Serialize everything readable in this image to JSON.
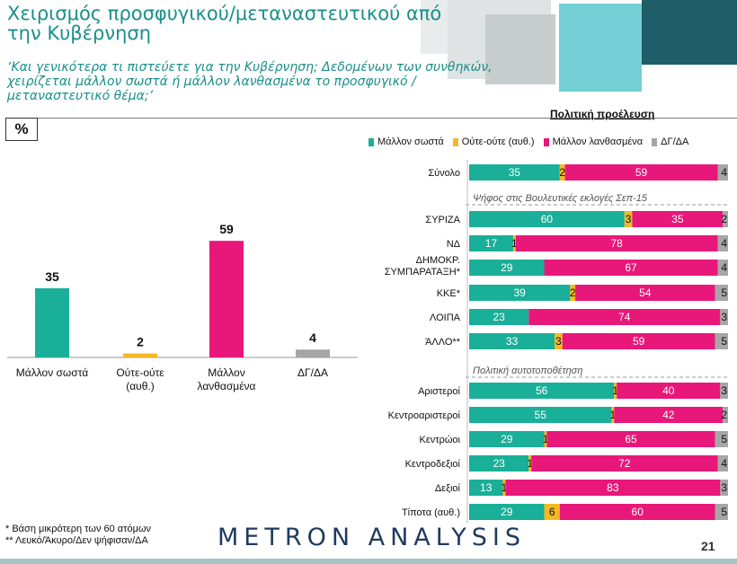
{
  "title": "Χειρισμός προσφυγικού/μεταναστευτικού από την Κυβέρνηση",
  "subtitle": "‘Και γενικότερα τι πιστεύετε για την Κυβέρνηση; Δεδομένων των συνθηκών, χειρίζεται μάλλον σωστά ή μάλλον λανθασμένα το προσφυγικό /μεταναστευτικό θέμα;’",
  "percent_label": "%",
  "origin_label": "Πολιτική προέλευση",
  "legend": [
    {
      "label": "Μάλλον σωστά",
      "color": "#1aaf98"
    },
    {
      "label": "Ούτε-ούτε (αυθ.)",
      "color": "#f5b923"
    },
    {
      "label": "Μάλλον λανθασμένα",
      "color": "#e8177a"
    },
    {
      "label": "ΔΓ/ΔΑ",
      "color": "#a6a6a6"
    }
  ],
  "chart_data": [
    {
      "type": "bar",
      "categories": [
        "Μάλλον σωστά",
        "Ούτε-ούτε (αυθ.)",
        "Μάλλον λανθασμένα",
        "ΔΓ/ΔΑ"
      ],
      "values": [
        35,
        2,
        59,
        4
      ],
      "colors": [
        "#1aaf98",
        "#f5b923",
        "#e8177a",
        "#a6a6a6"
      ]
    },
    {
      "type": "bar",
      "orientation": "horizontal",
      "stacked": true,
      "series_names": [
        "Μάλλον σωστά",
        "Ούτε-ούτε (αυθ.)",
        "Μάλλον λανθασμένα",
        "ΔΓ/ΔΑ"
      ],
      "section_labels": [
        "Ψήφος στις Βουλευτικές εκλογές Σεπ-15",
        "Πολιτική αυτοτοποθέτηση"
      ],
      "rows": [
        {
          "label": "Σύνολο",
          "values": [
            35,
            2,
            59,
            4
          ]
        },
        {
          "label": "ΣΥΡΙΖΑ",
          "values": [
            60,
            3,
            35,
            2
          ]
        },
        {
          "label": "ΝΔ",
          "values": [
            17,
            1,
            78,
            4
          ]
        },
        {
          "label": "ΔΗΜΟΚΡ. ΣΥΜΠΑΡΑΤΑΞΗ*",
          "values": [
            29,
            0,
            67,
            4
          ]
        },
        {
          "label": "ΚΚΕ*",
          "values": [
            39,
            2,
            54,
            5
          ]
        },
        {
          "label": "ΛΟΙΠΑ",
          "values": [
            23,
            0,
            74,
            3
          ]
        },
        {
          "label": "ΆΛΛΟ**",
          "values": [
            33,
            3,
            59,
            5
          ]
        },
        {
          "label": "Αριστεροί",
          "values": [
            56,
            1,
            40,
            3
          ]
        },
        {
          "label": "Κεντροαριστεροί",
          "values": [
            55,
            1,
            42,
            2
          ]
        },
        {
          "label": "Κεντρώοι",
          "values": [
            29,
            1,
            65,
            5
          ]
        },
        {
          "label": "Κεντροδεξιοί",
          "values": [
            23,
            1,
            72,
            4
          ]
        },
        {
          "label": "Δεξιοί",
          "values": [
            13,
            1,
            83,
            3
          ]
        },
        {
          "label": "Τίποτα (αυθ.)",
          "values": [
            29,
            6,
            60,
            5
          ]
        }
      ]
    }
  ],
  "footnotes": [
    "*  Βάση μικρότερη των 60 ατόμων",
    "** Λευκό/Άκυρο/Δεν ψήφισαν/ΔΑ"
  ],
  "brand": "METRON ANALYSIS",
  "page_number": "21"
}
